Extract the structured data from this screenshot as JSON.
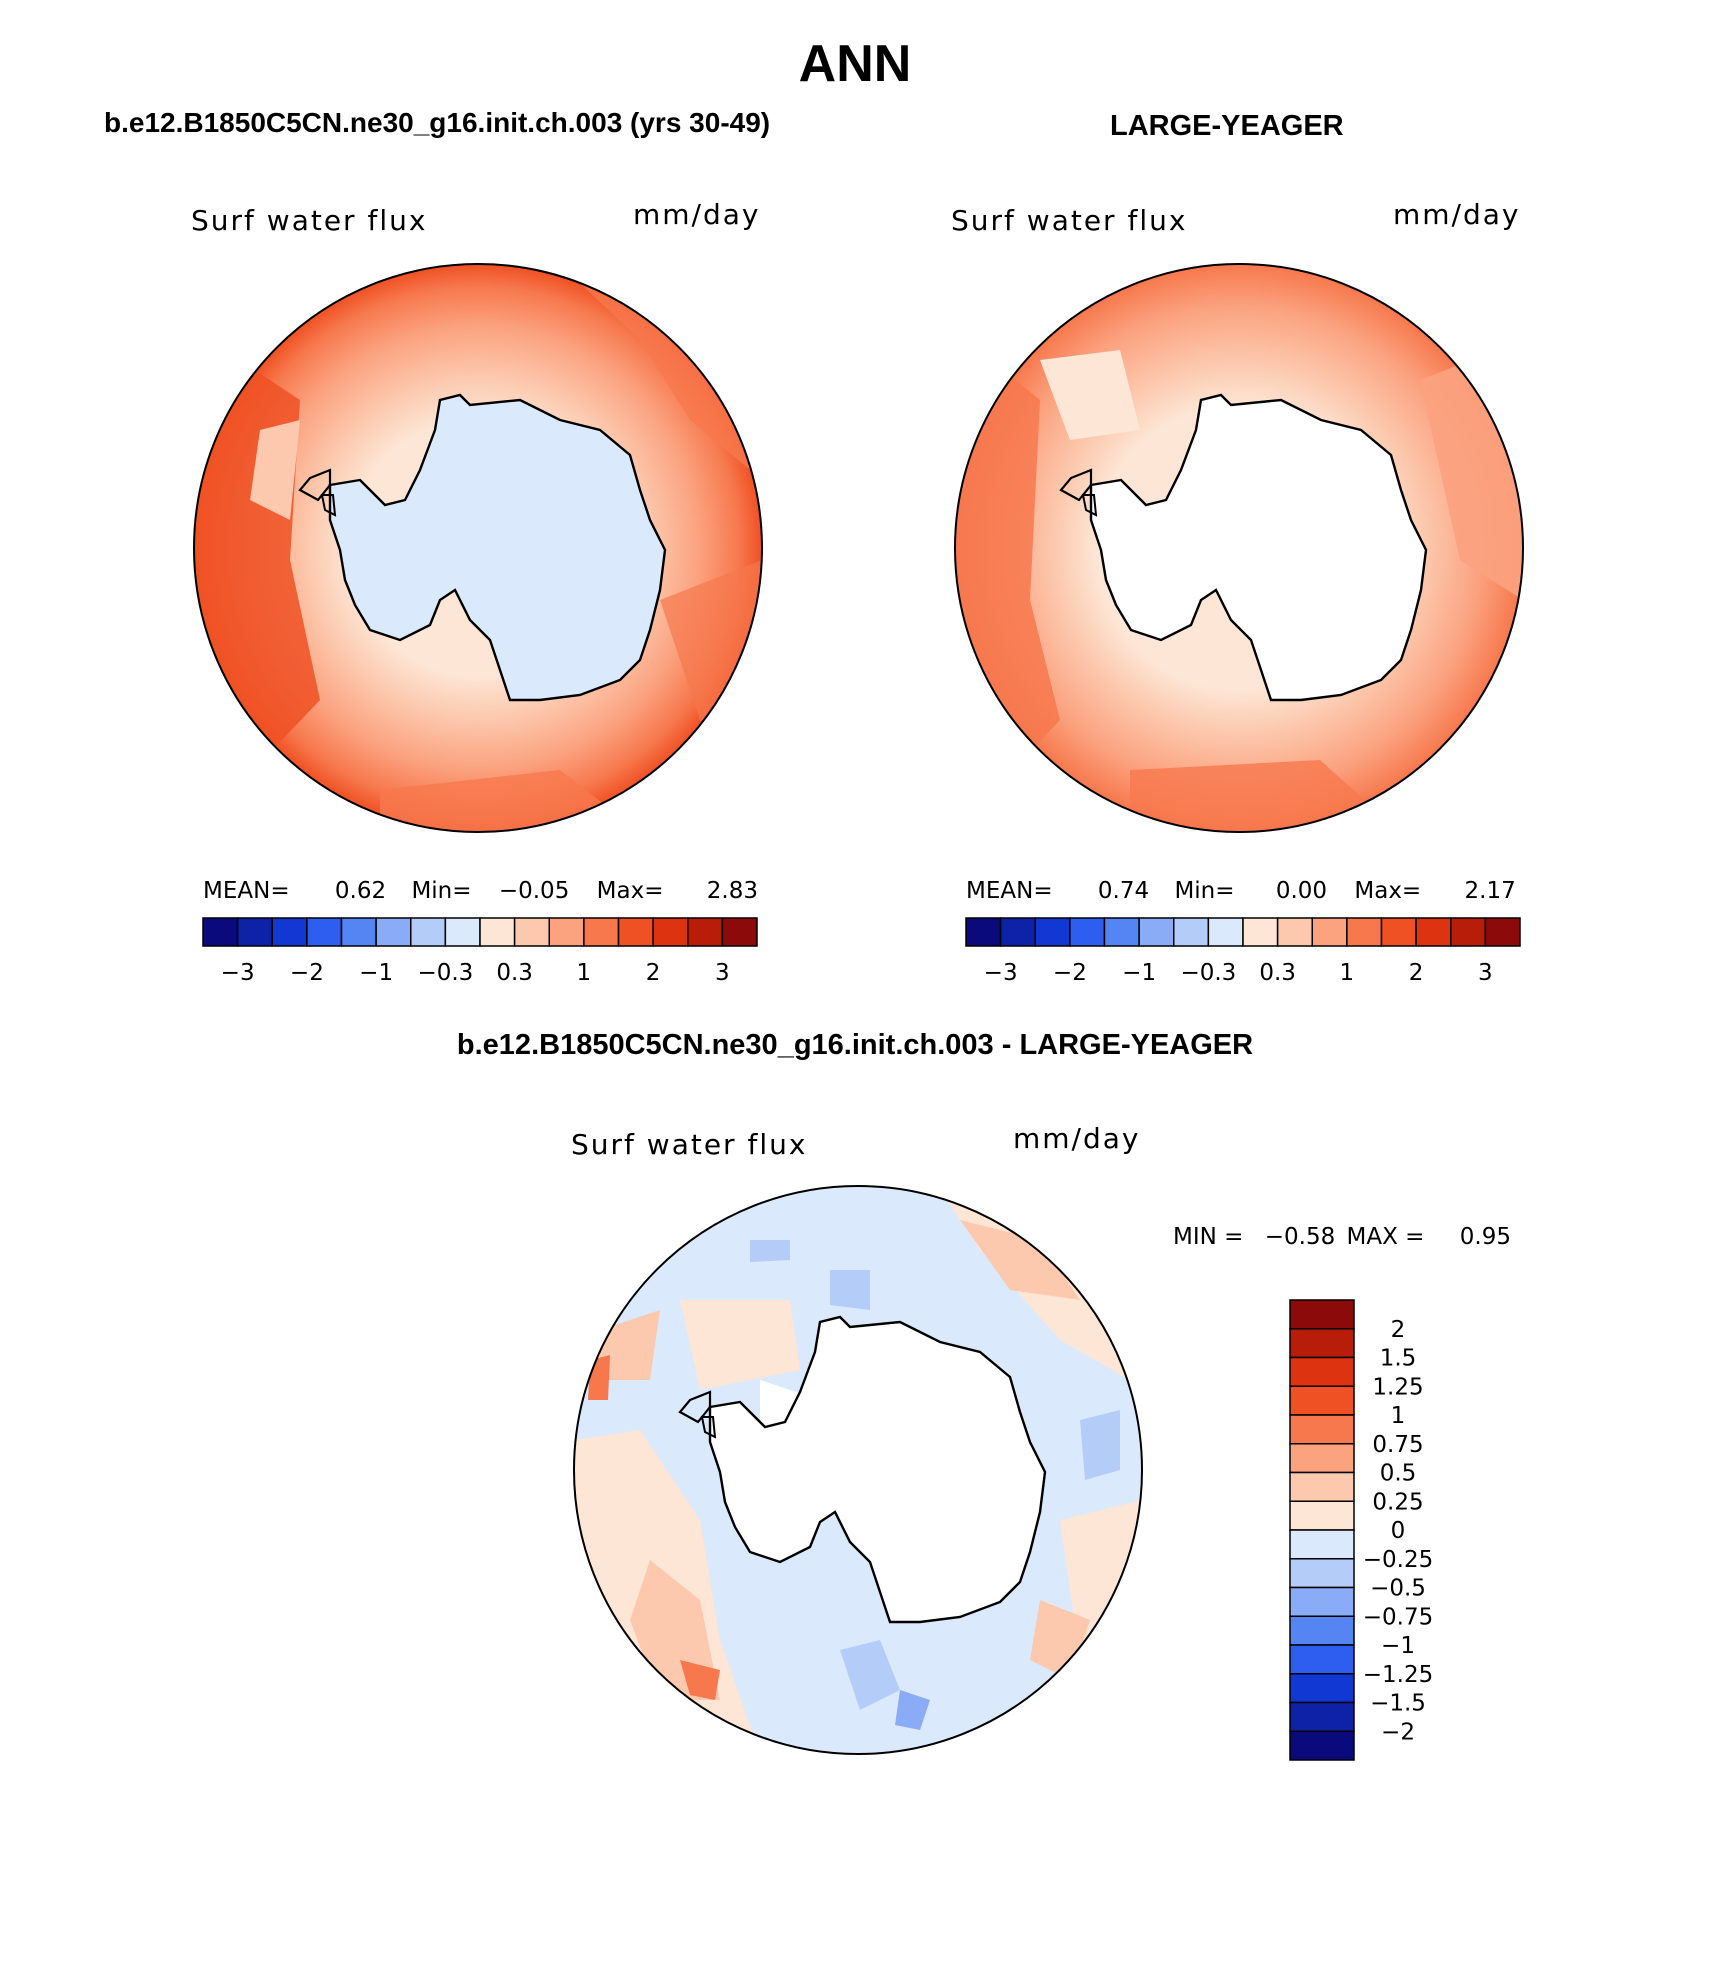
{
  "page": {
    "title": "ANN",
    "panel_left_title": "b.e12.B1850C5CN.ne30_g16.init.ch.003 (yrs 30-49)",
    "panel_right_title": "LARGE-YEAGER",
    "diff_title": "b.e12.B1850C5CN.ne30_g16.init.ch.003 - LARGE-YEAGER"
  },
  "panels": [
    {
      "variable": "Surf water flux",
      "units": "mm/day",
      "stats": {
        "mean_label": "MEAN=",
        "mean": "0.62",
        "min_label": "Min=",
        "min": "−0.05",
        "max_label": "Max=",
        "max": "2.83"
      },
      "colorbar_ticks": [
        "−3",
        "−2",
        "−1",
        "−0.3",
        "0.3",
        "1",
        "2",
        "3"
      ]
    },
    {
      "variable": "Surf water flux",
      "units": "mm/day",
      "stats": {
        "mean_label": "MEAN=",
        "mean": "0.74",
        "min_label": "Min=",
        "min": "0.00",
        "max_label": "Max=",
        "max": "2.17"
      },
      "colorbar_ticks": [
        "−3",
        "−2",
        "−1",
        "−0.3",
        "0.3",
        "1",
        "2",
        "3"
      ]
    }
  ],
  "diff_panel": {
    "variable": "Surf water flux",
    "units": "mm/day",
    "min_label": "MIN =",
    "min": "−0.58",
    "max_label": "MAX =",
    "max": "0.95",
    "colorbar_labels": [
      "2",
      "1.5",
      "1.25",
      "1",
      "0.75",
      "0.5",
      "0.25",
      "0",
      "−0.25",
      "−0.5",
      "−0.75",
      "−1",
      "−1.25",
      "−1.5",
      "−2"
    ]
  },
  "colors": {
    "abs_scale": [
      "#0a0a7d",
      "#0d22a6",
      "#1238d4",
      "#2e5ef0",
      "#5585f2",
      "#8aabf5",
      "#b4ccf8",
      "#dae9fc",
      "#fde6d6",
      "#fcc9ae",
      "#fba27f",
      "#f7784d",
      "#ef5124",
      "#dd3311",
      "#b81d09",
      "#8c0a0a"
    ],
    "diff_scale": [
      "#0a0a7d",
      "#0d22a6",
      "#1238d4",
      "#2e5ef0",
      "#5585f2",
      "#8aabf5",
      "#b4ccf8",
      "#dae9fc",
      "#fde6d6",
      "#fcc9ae",
      "#fba27f",
      "#f7784d",
      "#ef5124",
      "#dd3311",
      "#b81d09",
      "#8c0a0a"
    ],
    "land": "#ffffff",
    "outline": "#000000"
  }
}
